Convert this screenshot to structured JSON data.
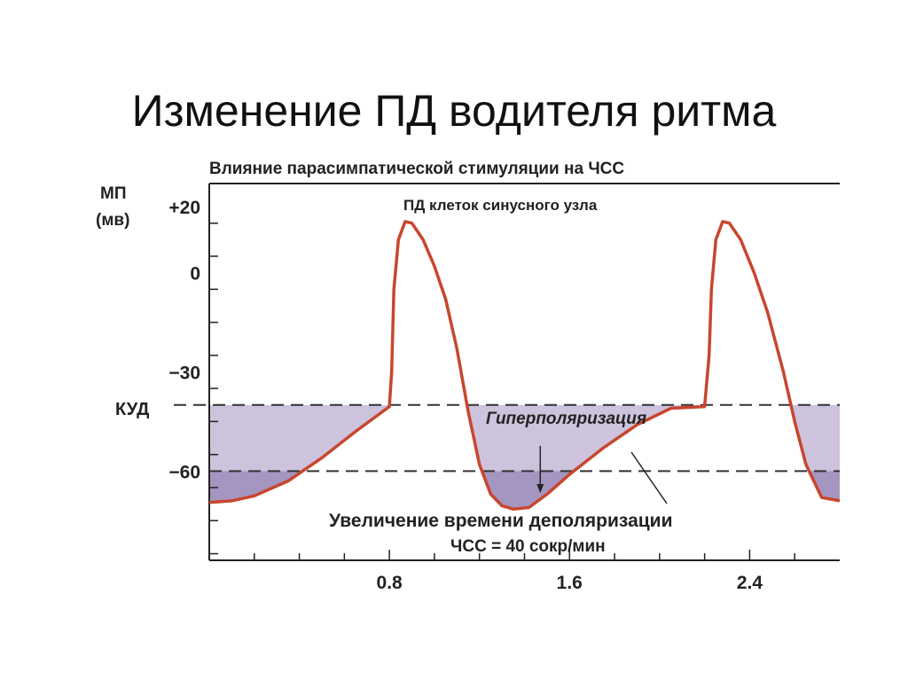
{
  "slide": {
    "title": "Изменение ПД водителя ритма"
  },
  "chart_data": {
    "type": "line",
    "title": "Влияние парасимпатической стимуляции на ЧСС",
    "subtitle": "ПД клеток синусного узла",
    "ylabel_line1": "МП",
    "ylabel_line2": "(мв)",
    "y_ticks": [
      {
        "value": 20,
        "label": "+20"
      },
      {
        "value": 0,
        "label": "0"
      },
      {
        "value": -30,
        "label": "−30"
      },
      {
        "value": -60,
        "label": "−60"
      }
    ],
    "x_ticks": [
      {
        "value": 0.8,
        "label": "0.8"
      },
      {
        "value": 1.6,
        "label": "1.6"
      },
      {
        "value": 2.4,
        "label": "2.4"
      }
    ],
    "xlim": [
      0,
      2.8
    ],
    "ylim": [
      -87,
      27
    ],
    "threshold": {
      "label": "КУД",
      "value": -40
    },
    "dashed_level_2": -60,
    "annotations": {
      "hyperpolarization": "Гиперполяризация",
      "depolarization_time": "Увеличение времени деполяризации",
      "heart_rate": "ЧСС = 40 сокр/мин"
    },
    "series": [
      {
        "x": [
          0,
          0.1,
          0.2,
          0.35,
          0.5,
          0.65,
          0.8,
          0.81,
          0.82,
          0.84,
          0.87,
          0.9,
          0.95,
          1.0,
          1.05,
          1.1,
          1.15,
          1.2,
          1.25,
          1.3,
          1.35,
          1.42,
          1.5,
          1.6,
          1.75,
          1.9,
          2.05,
          2.2,
          2.22,
          2.23,
          2.25,
          2.28,
          2.31,
          2.36,
          2.42,
          2.48,
          2.55,
          2.6,
          2.65,
          2.72,
          2.8
        ],
        "y": [
          -69.5,
          -69,
          -67.5,
          -63,
          -56,
          -48,
          -40.5,
          -30,
          -5,
          10,
          15.5,
          15,
          10,
          2,
          -8,
          -23,
          -42,
          -58,
          -67,
          -70.5,
          -71.5,
          -71,
          -67,
          -61,
          -53,
          -46,
          -41,
          -40.5,
          -25,
          -5,
          10,
          15.5,
          15,
          10,
          0,
          -12,
          -30,
          -45,
          -58,
          -68,
          -69
        ]
      }
    ],
    "colors": {
      "curve": "#c8462e",
      "fill_upper": "#cdc3dd",
      "fill_lower": "#a596c1",
      "axis": "#222222",
      "dashed": "#333333"
    }
  }
}
